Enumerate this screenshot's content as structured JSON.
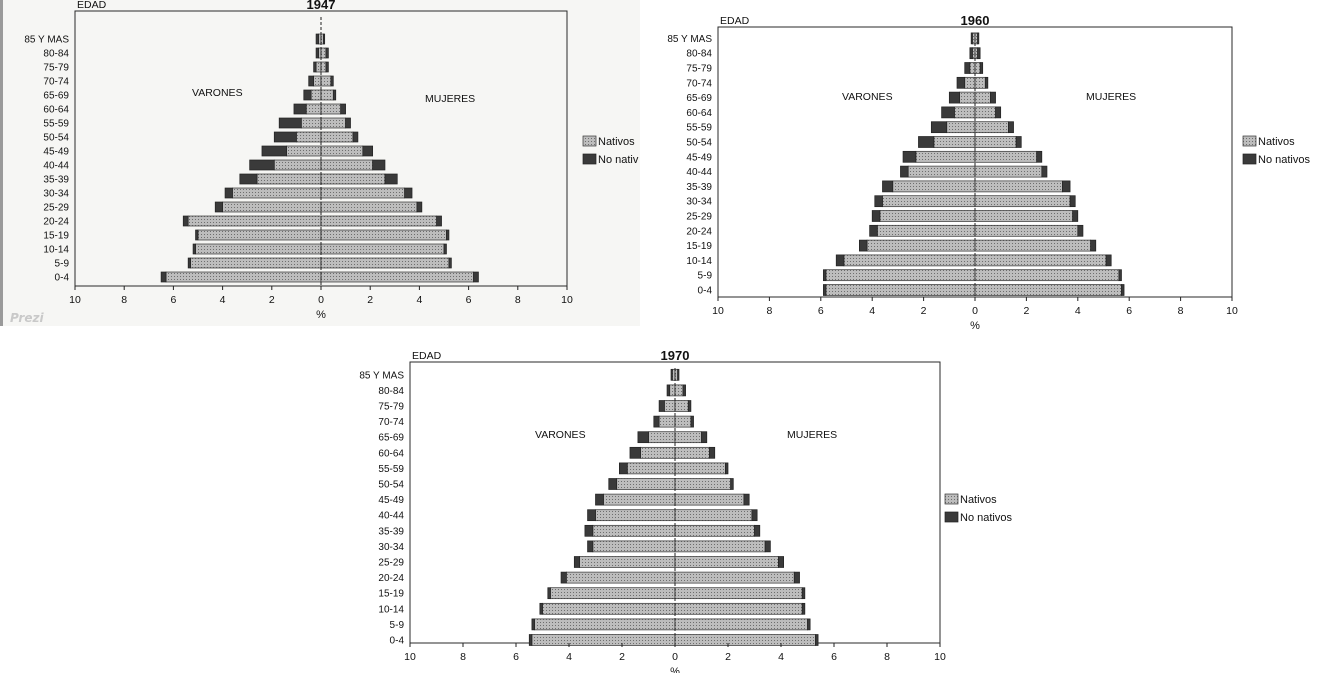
{
  "chart_data": [
    {
      "type": "bar",
      "title": "1947",
      "ylabel": "EDAD",
      "xlabel": "%",
      "left_label": "VARONES",
      "right_label": "MUJERES",
      "categories": [
        "0-4",
        "5-9",
        "10-14",
        "15-19",
        "20-24",
        "25-29",
        "30-34",
        "35-39",
        "40-44",
        "45-49",
        "50-54",
        "55-59",
        "60-64",
        "65-69",
        "70-74",
        "75-79",
        "80-84",
        "85 Y MAS"
      ],
      "x_ticks": [
        "10",
        "8",
        "6",
        "4",
        "2",
        "0",
        "2",
        "4",
        "6",
        "8",
        "10"
      ],
      "xlim": [
        -10,
        10
      ],
      "legend": [
        "Nativos",
        "No nativos"
      ],
      "legend_visible": [
        "Nativos",
        "No nativ"
      ],
      "legend_position": "right",
      "series": [
        {
          "name": "Nativos",
          "side": "VARONES",
          "values": [
            6.3,
            5.3,
            5.1,
            5.0,
            5.4,
            4.0,
            3.6,
            2.6,
            1.9,
            1.4,
            1.0,
            0.8,
            0.6,
            0.4,
            0.3,
            0.2,
            0.1,
            0.1
          ]
        },
        {
          "name": "No nativos",
          "side": "VARONES",
          "values": [
            0.2,
            0.1,
            0.1,
            0.1,
            0.2,
            0.3,
            0.3,
            0.7,
            1.0,
            1.0,
            0.9,
            0.9,
            0.5,
            0.3,
            0.2,
            0.1,
            0.1,
            0.1
          ]
        },
        {
          "name": "Nativos",
          "side": "MUJERES",
          "values": [
            6.2,
            5.2,
            5.0,
            5.1,
            4.7,
            3.9,
            3.4,
            2.6,
            2.1,
            1.7,
            1.3,
            1.0,
            0.8,
            0.5,
            0.4,
            0.2,
            0.2,
            0.1
          ]
        },
        {
          "name": "No nativos",
          "side": "MUJERES",
          "values": [
            0.2,
            0.1,
            0.1,
            0.1,
            0.2,
            0.2,
            0.3,
            0.5,
            0.5,
            0.4,
            0.2,
            0.2,
            0.2,
            0.1,
            0.1,
            0.1,
            0.1,
            0.05
          ]
        }
      ]
    },
    {
      "type": "bar",
      "title": "1960",
      "ylabel": "EDAD",
      "xlabel": "%",
      "left_label": "VARONES",
      "right_label": "MUJERES",
      "categories": [
        "0-4",
        "5-9",
        "10-14",
        "15-19",
        "20-24",
        "25-29",
        "30-34",
        "35-39",
        "40-44",
        "45-49",
        "50-54",
        "55-59",
        "60-64",
        "65-69",
        "70-74",
        "75-79",
        "80-84",
        "85 Y MAS"
      ],
      "x_ticks": [
        "10",
        "8",
        "6",
        "4",
        "2",
        "0",
        "2",
        "4",
        "6",
        "8",
        "10"
      ],
      "xlim": [
        -10,
        10
      ],
      "legend": [
        "Nativos",
        "No nativos"
      ],
      "legend_visible": [
        "Nativos",
        "No nativos"
      ],
      "legend_position": "right",
      "series": [
        {
          "name": "Nativos",
          "side": "VARONES",
          "values": [
            5.8,
            5.8,
            5.1,
            4.2,
            3.8,
            3.7,
            3.6,
            3.2,
            2.6,
            2.3,
            1.6,
            1.1,
            0.8,
            0.6,
            0.4,
            0.2,
            0.1,
            0.1
          ]
        },
        {
          "name": "No nativos",
          "side": "VARONES",
          "values": [
            0.1,
            0.1,
            0.3,
            0.3,
            0.3,
            0.3,
            0.3,
            0.4,
            0.3,
            0.5,
            0.6,
            0.6,
            0.5,
            0.4,
            0.3,
            0.2,
            0.1,
            0.05
          ]
        },
        {
          "name": "Nativos",
          "side": "MUJERES",
          "values": [
            5.7,
            5.6,
            5.1,
            4.5,
            4.0,
            3.8,
            3.7,
            3.4,
            2.6,
            2.4,
            1.6,
            1.3,
            0.8,
            0.6,
            0.4,
            0.2,
            0.1,
            0.1
          ]
        },
        {
          "name": "No nativos",
          "side": "MUJERES",
          "values": [
            0.1,
            0.1,
            0.2,
            0.2,
            0.2,
            0.2,
            0.2,
            0.3,
            0.2,
            0.2,
            0.2,
            0.2,
            0.2,
            0.2,
            0.1,
            0.1,
            0.1,
            0.05
          ]
        }
      ]
    },
    {
      "type": "bar",
      "title": "1970",
      "ylabel": "EDAD",
      "xlabel": "%",
      "left_label": "VARONES",
      "right_label": "MUJERES",
      "categories": [
        "0-4",
        "5-9",
        "10-14",
        "15-19",
        "20-24",
        "25-29",
        "30-34",
        "35-39",
        "40-44",
        "45-49",
        "50-54",
        "55-59",
        "60-64",
        "65-69",
        "70-74",
        "75-79",
        "80-84",
        "85 Y MAS"
      ],
      "x_ticks": [
        "10",
        "8",
        "6",
        "4",
        "2",
        "0",
        "2",
        "4",
        "6",
        "8",
        "10"
      ],
      "xlim": [
        -10,
        10
      ],
      "legend": [
        "Nativos",
        "No nativos"
      ],
      "legend_visible": [
        "Nativos",
        "No nativos"
      ],
      "legend_position": "right",
      "series": [
        {
          "name": "Nativos",
          "side": "VARONES",
          "values": [
            5.4,
            5.3,
            5.0,
            4.7,
            4.1,
            3.6,
            3.1,
            3.1,
            3.0,
            2.7,
            2.2,
            1.8,
            1.3,
            1.0,
            0.6,
            0.4,
            0.2,
            0.1
          ]
        },
        {
          "name": "No nativos",
          "side": "VARONES",
          "values": [
            0.1,
            0.1,
            0.1,
            0.1,
            0.2,
            0.2,
            0.2,
            0.3,
            0.3,
            0.3,
            0.3,
            0.3,
            0.4,
            0.4,
            0.2,
            0.2,
            0.1,
            0.05
          ]
        },
        {
          "name": "Nativos",
          "side": "MUJERES",
          "values": [
            5.3,
            5.0,
            4.8,
            4.8,
            4.5,
            3.9,
            3.4,
            3.0,
            2.9,
            2.6,
            2.1,
            1.9,
            1.3,
            1.0,
            0.6,
            0.5,
            0.3,
            0.1
          ]
        },
        {
          "name": "No nativos",
          "side": "MUJERES",
          "values": [
            0.1,
            0.1,
            0.1,
            0.1,
            0.2,
            0.2,
            0.2,
            0.2,
            0.2,
            0.2,
            0.1,
            0.1,
            0.2,
            0.2,
            0.1,
            0.1,
            0.1,
            0.05
          ]
        }
      ]
    }
  ],
  "watermark": "Prezi",
  "colors": {
    "nativos": "#bdbdbd",
    "no_nativos": "#3a3a3a",
    "frame": "#2a2a2a"
  }
}
